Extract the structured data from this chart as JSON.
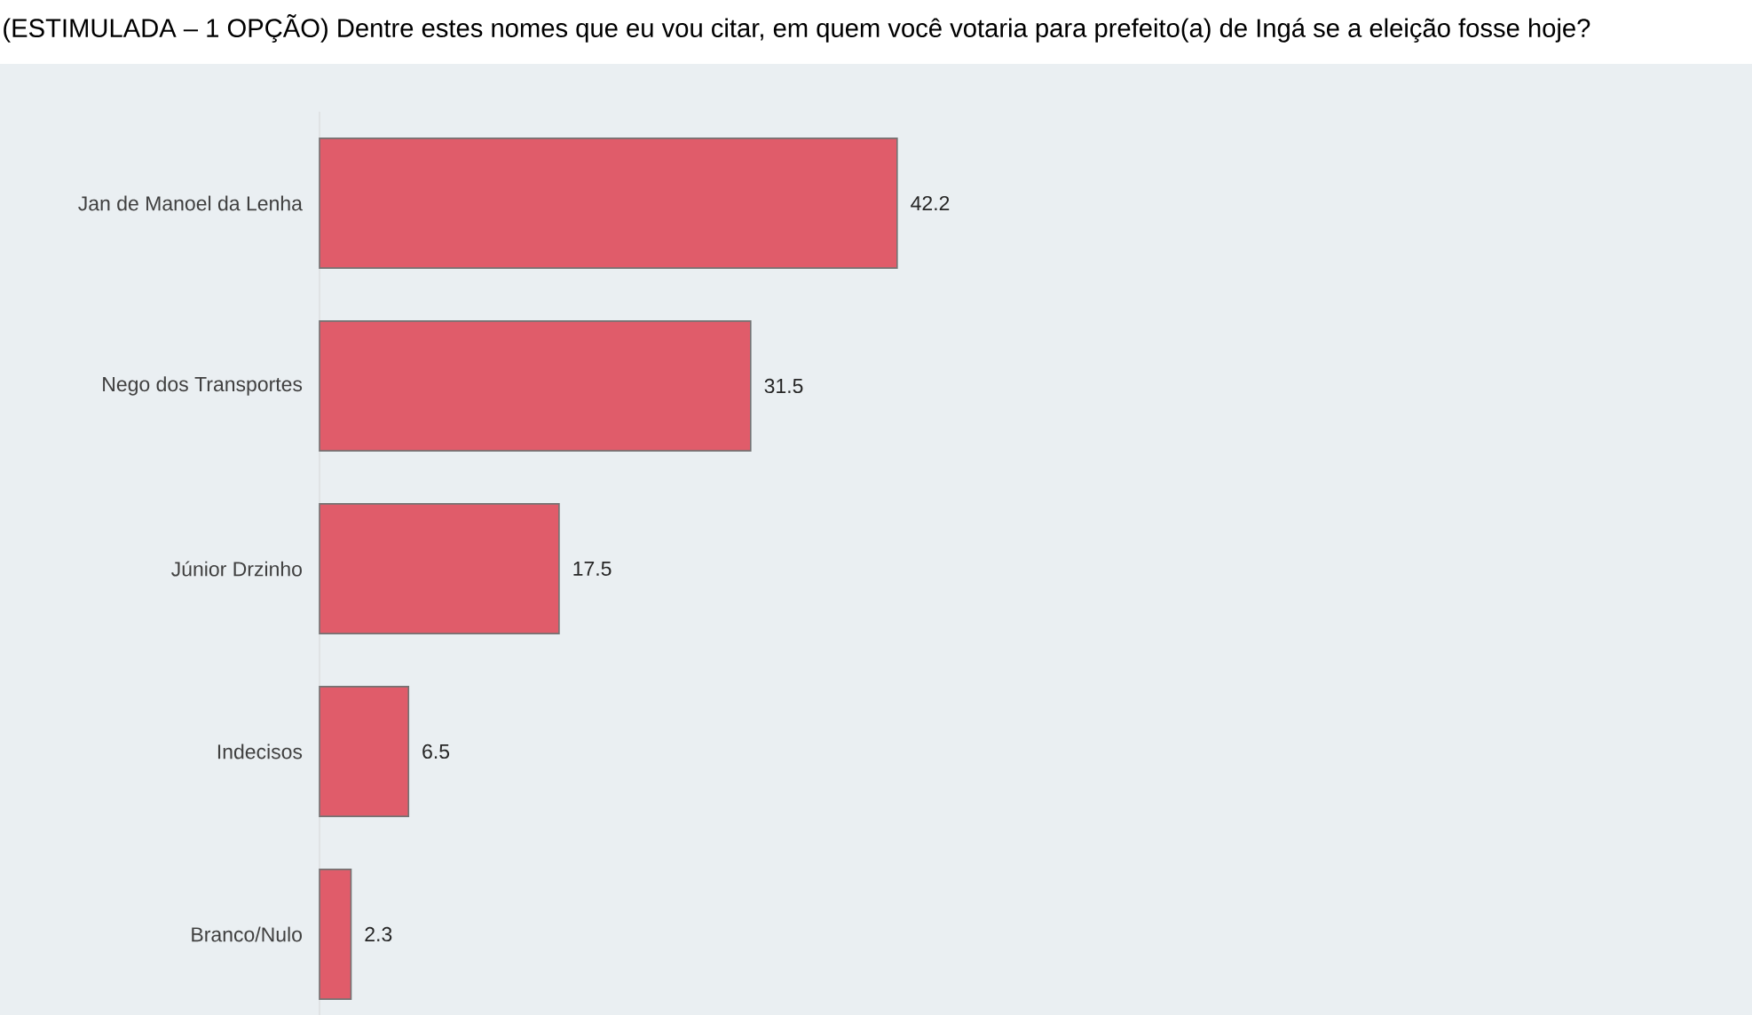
{
  "chart_data": {
    "type": "bar",
    "orientation": "horizontal",
    "title": "(ESTIMULADA – 1 OPÇÃO) Dentre estes nomes que eu vou citar, em quem você votaria para prefeito(a) de Ingá se a eleição fosse hoje?",
    "categories": [
      "Jan de Manoel da Lenha",
      "Nego dos Transportes",
      "Júnior Drzinho",
      "Indecisos",
      "Branco/Nulo"
    ],
    "values": [
      42.2,
      31.5,
      17.5,
      6.5,
      2.3
    ],
    "color": "#e05c6a",
    "data_labels": true
  }
}
